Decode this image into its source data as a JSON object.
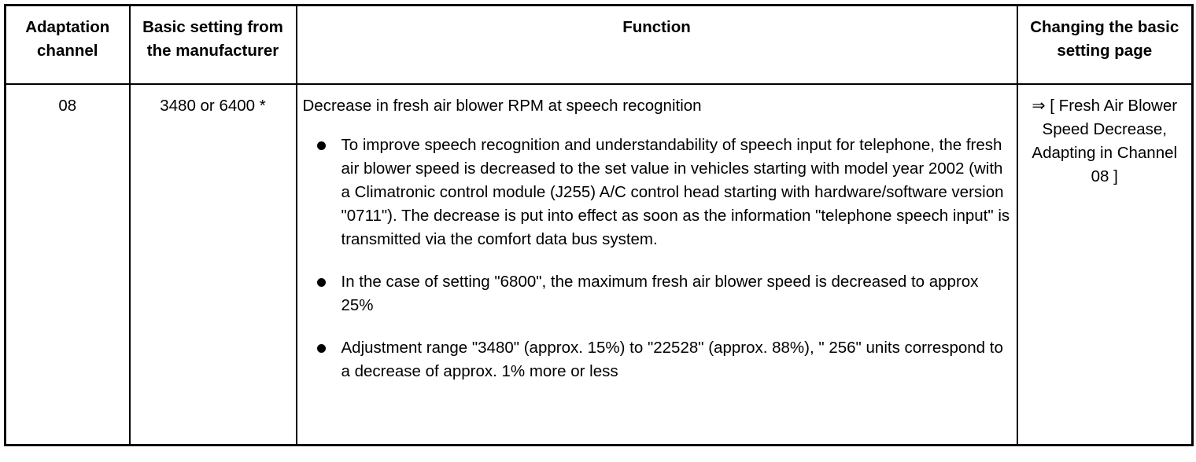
{
  "table": {
    "headers": [
      "Adaptation channel",
      "Basic setting from the manufacturer",
      "Function",
      "Changing the basic setting page"
    ],
    "rows": [
      {
        "channel": "08",
        "basic_setting": "3480 or 6400 *",
        "function_title": "Decrease in fresh air blower RPM at speech recognition",
        "bullets": [
          "To improve speech recognition and understandability of speech input for telephone, the fresh air blower speed is decreased to the set value in vehicles starting with model year 2002 (with a Climatronic control module (J255) A/C control head starting with hardware/software version \"0711\"). The decrease is put into effect as soon as the information \"telephone speech input\" is transmitted via the comfort data bus system.",
          "In the case of setting \"6800\", the maximum fresh air blower speed is decreased to approx 25%",
          "Adjustment range \"3480\" (approx. 15%) to \"22528\" (approx. 88%), \" 256\" units correspond to a decrease of approx. 1% more or less"
        ],
        "reference": "⇒ [ Fresh Air Blower Speed Decrease, Adapting in Channel 08 ]"
      }
    ]
  }
}
